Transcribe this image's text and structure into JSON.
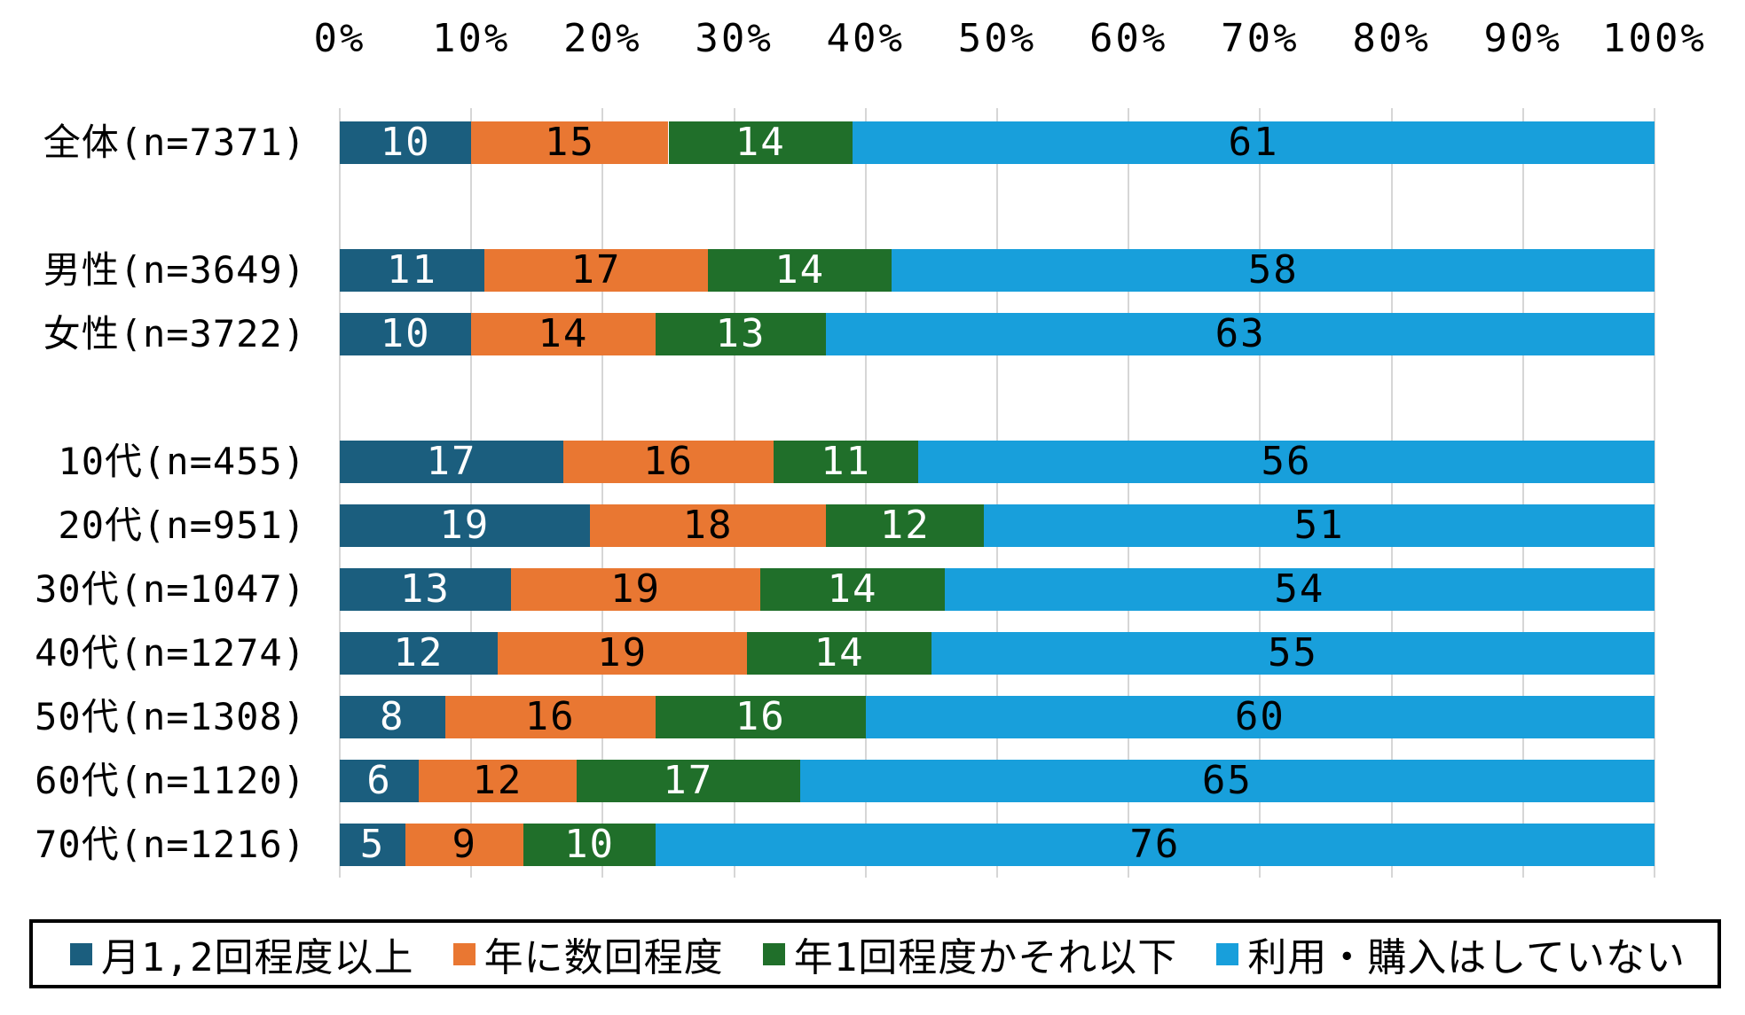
{
  "chart_data": {
    "type": "bar",
    "stacked": true,
    "horizontal": true,
    "percent_total": 100,
    "title": "",
    "xlabel": "",
    "ylabel": "",
    "xlim": [
      0,
      100
    ],
    "x_ticks": [
      "0%",
      "10%",
      "20%",
      "30%",
      "40%",
      "50%",
      "60%",
      "70%",
      "80%",
      "90%",
      "100%"
    ],
    "axis_position": "top",
    "grid": true,
    "legend_position": "bottom-box",
    "categories": [
      "全体(n=7371)",
      "男性(n=3649)",
      "女性(n=3722)",
      "10代(n=455)",
      "20代(n=951)",
      "30代(n=1047)",
      "40代(n=1274)",
      "50代(n=1308)",
      "60代(n=1120)",
      "70代(n=1216)"
    ],
    "group_sizes": [
      1,
      2,
      7
    ],
    "series": [
      {
        "name": "月1,2回程度以上",
        "color": "#1b5e7e",
        "label_color": "#ffffff",
        "values": [
          10,
          11,
          10,
          17,
          19,
          13,
          12,
          8,
          6,
          5
        ]
      },
      {
        "name": "年に数回程度",
        "color": "#e97732",
        "label_color": "#000000",
        "values": [
          15,
          17,
          14,
          16,
          18,
          19,
          19,
          16,
          12,
          9
        ]
      },
      {
        "name": "年1回程度かそれ以下",
        "color": "#206f2a",
        "label_color": "#ffffff",
        "values": [
          14,
          14,
          13,
          11,
          12,
          14,
          14,
          16,
          17,
          10
        ]
      },
      {
        "name": "利用・購入はしていない",
        "color": "#189fdb",
        "label_color": "#000000",
        "values": [
          61,
          58,
          63,
          56,
          51,
          54,
          55,
          60,
          65,
          76
        ]
      }
    ]
  },
  "colors": {
    "background": "#ffffff",
    "gridline": "#d6d6d6",
    "text": "#000000",
    "legend_border": "#000000"
  }
}
